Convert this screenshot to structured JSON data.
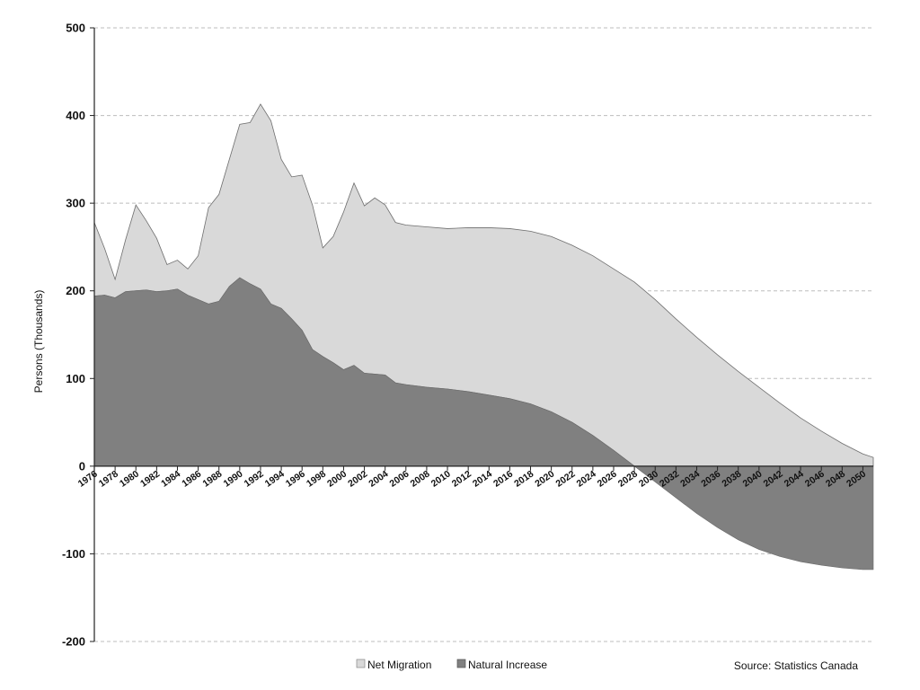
{
  "chart_data": {
    "type": "area",
    "title": "",
    "xlabel": "",
    "ylabel": "Persons (Thousands)",
    "ylim": [
      -200,
      500
    ],
    "xlim": [
      1976,
      2051
    ],
    "yticks": [
      500,
      400,
      300,
      200,
      100,
      0,
      -100,
      -200
    ],
    "xticks": [
      1976,
      1978,
      1980,
      1982,
      1984,
      1986,
      1988,
      1990,
      1992,
      1994,
      1996,
      1998,
      2000,
      2002,
      2004,
      2006,
      2008,
      2010,
      2012,
      2014,
      2016,
      2018,
      2020,
      2022,
      2024,
      2026,
      2028,
      2030,
      2032,
      2034,
      2036,
      2038,
      2040,
      2042,
      2044,
      2046,
      2048,
      2050
    ],
    "grid": true,
    "legend": "bottom-center",
    "source": "Source: Statistics Canada",
    "colors": {
      "net_migration": "#d9d9d9",
      "natural_increase": "#808080",
      "outline": "#6e6e6e",
      "grid": "#bdbdbd"
    },
    "x": [
      1976,
      1977,
      1978,
      1979,
      1980,
      1981,
      1982,
      1983,
      1984,
      1985,
      1986,
      1987,
      1988,
      1989,
      1990,
      1991,
      1992,
      1993,
      1994,
      1995,
      1996,
      1997,
      1998,
      1999,
      2000,
      2001,
      2002,
      2003,
      2004,
      2005,
      2006,
      2008,
      2010,
      2012,
      2014,
      2016,
      2018,
      2020,
      2022,
      2024,
      2026,
      2028,
      2030,
      2032,
      2034,
      2036,
      2038,
      2040,
      2042,
      2044,
      2046,
      2048,
      2050,
      2051
    ],
    "series": [
      {
        "name": "Net Migration",
        "stack_top": [
          278,
          248,
          213,
          258,
          298,
          280,
          260,
          230,
          235,
          225,
          240,
          295,
          310,
          350,
          390,
          392,
          413,
          394,
          350,
          330,
          332,
          298,
          249,
          262,
          290,
          323,
          297,
          306,
          298,
          278,
          275,
          273,
          271,
          272,
          272,
          271,
          268,
          262,
          252,
          240,
          225,
          210,
          190,
          168,
          147,
          127,
          108,
          90,
          72,
          55,
          40,
          26,
          14,
          10
        ]
      },
      {
        "name": "Natural Increase",
        "values": [
          194,
          195,
          192,
          199,
          200,
          201,
          199,
          200,
          202,
          195,
          190,
          185,
          188,
          205,
          215,
          208,
          202,
          185,
          180,
          168,
          155,
          133,
          125,
          118,
          110,
          115,
          106,
          105,
          104,
          95,
          93,
          90,
          88,
          85,
          81,
          77,
          71,
          62,
          50,
          35,
          18,
          0,
          -18,
          -36,
          -54,
          -70,
          -84,
          -95,
          -103,
          -109,
          -113,
          -116,
          -118,
          -118
        ]
      }
    ]
  }
}
